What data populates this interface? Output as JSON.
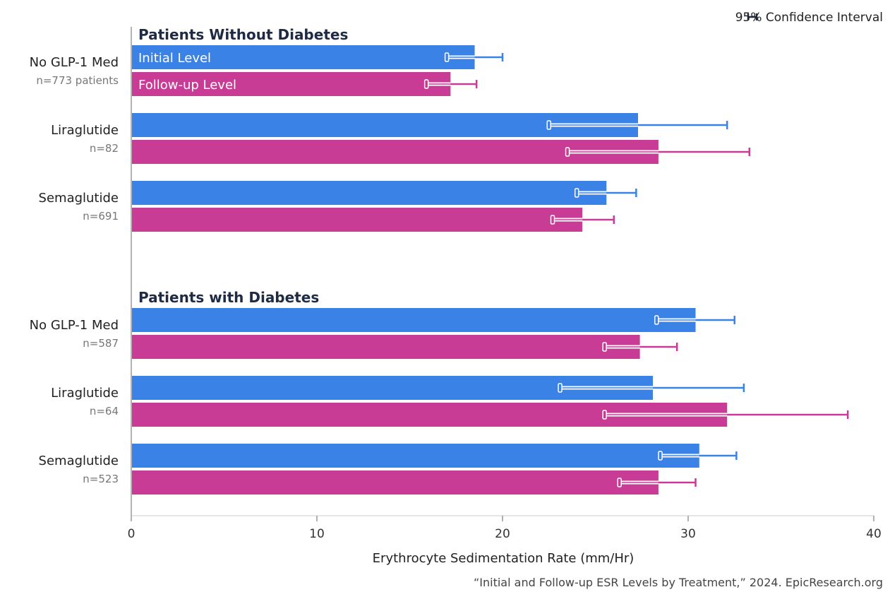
{
  "chart_data": {
    "type": "bar",
    "orientation": "horizontal",
    "xlabel": "Erythrocyte Sedimentation Rate (mm/Hr)",
    "xlim": [
      0,
      40
    ],
    "xticks": [
      0,
      10,
      20,
      30,
      40
    ],
    "grid": false,
    "legend": {
      "placement": "top-right",
      "ci_label": "95% Confidence Interval"
    },
    "source": "“Initial and Follow-up ESR Levels by Treatment,” 2024. EpicResearch.org",
    "series": [
      {
        "name": "Initial Level",
        "color": "#3b82e6"
      },
      {
        "name": "Follow-up Level",
        "color": "#c83c96"
      }
    ],
    "groups": [
      {
        "title": "Patients Without Diabetes",
        "categories": [
          {
            "label": "No GLP-1 Med",
            "n": "n=773 patients",
            "initial": {
              "value": 18.5,
              "ci": [
                17.0,
                20.0
              ]
            },
            "followup": {
              "value": 17.2,
              "ci": [
                15.9,
                18.6
              ]
            }
          },
          {
            "label": "Liraglutide",
            "n": "n=82",
            "initial": {
              "value": 27.3,
              "ci": [
                22.5,
                32.1
              ]
            },
            "followup": {
              "value": 28.4,
              "ci": [
                23.5,
                33.3
              ]
            }
          },
          {
            "label": "Semaglutide",
            "n": "n=691",
            "initial": {
              "value": 25.6,
              "ci": [
                24.0,
                27.2
              ]
            },
            "followup": {
              "value": 24.3,
              "ci": [
                22.7,
                26.0
              ]
            }
          }
        ]
      },
      {
        "title": "Patients with Diabetes",
        "categories": [
          {
            "label": "No GLP-1 Med",
            "n": "n=587",
            "initial": {
              "value": 30.4,
              "ci": [
                28.3,
                32.5
              ]
            },
            "followup": {
              "value": 27.4,
              "ci": [
                25.5,
                29.4
              ]
            }
          },
          {
            "label": "Liraglutide",
            "n": "n=64",
            "initial": {
              "value": 28.1,
              "ci": [
                23.1,
                33.0
              ]
            },
            "followup": {
              "value": 32.1,
              "ci": [
                25.5,
                38.6
              ]
            }
          },
          {
            "label": "Semaglutide",
            "n": "n=523",
            "initial": {
              "value": 30.6,
              "ci": [
                28.5,
                32.6
              ]
            },
            "followup": {
              "value": 28.4,
              "ci": [
                26.3,
                30.4
              ]
            }
          }
        ]
      }
    ]
  }
}
